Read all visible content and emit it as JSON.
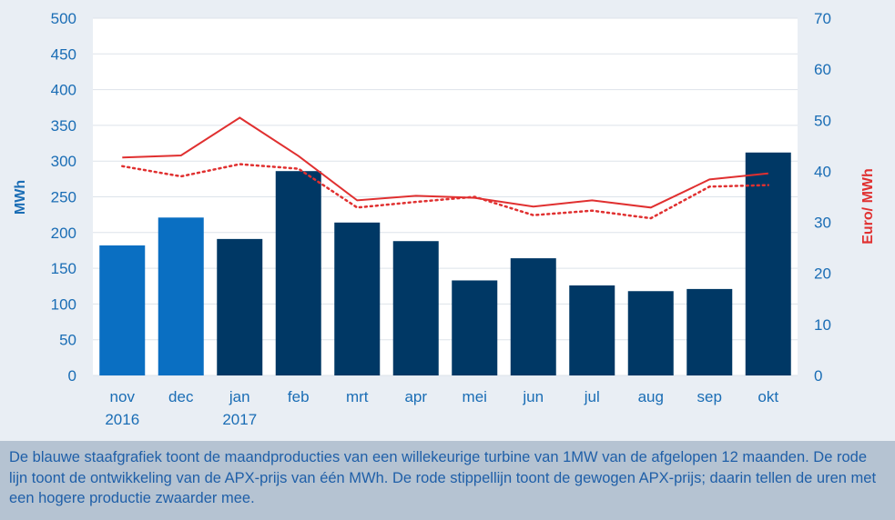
{
  "colors": {
    "bar_highlight": "#0a6fc2",
    "bar_dark": "#003865",
    "price_line": "#e03030",
    "axis_text_left": "#1a6db5",
    "axis_text_right": "#e03030",
    "plot_background": "#ffffff",
    "caption_background": "#b5c3d2"
  },
  "chart_data": {
    "type": "bar",
    "categories": [
      "nov\n2016",
      "dec",
      "jan\n2017",
      "feb",
      "mrt",
      "apr",
      "mei",
      "jun",
      "jul",
      "aug",
      "sep",
      "okt"
    ],
    "ylabel": "MWh",
    "y2label": "Euro/ MWh",
    "ylim": [
      0,
      500
    ],
    "y2lim": [
      0,
      70
    ],
    "yticks": [
      "0",
      "50",
      "100",
      "150",
      "200",
      "250",
      "300",
      "350",
      "400",
      "450",
      "500"
    ],
    "y2ticks": [
      "0",
      "10",
      "20",
      "30",
      "40",
      "50",
      "60",
      "70"
    ],
    "grid": true,
    "bars": {
      "values": [
        182,
        221,
        191,
        286,
        214,
        188,
        133,
        164,
        126,
        118,
        121,
        312
      ],
      "colors": [
        "#0a6fc2",
        "#0a6fc2",
        "#003865",
        "#003865",
        "#003865",
        "#003865",
        "#003865",
        "#003865",
        "#003865",
        "#003865",
        "#003865",
        "#003865"
      ]
    },
    "lines": [
      {
        "axis": "right",
        "style": "solid",
        "values": [
          42.7,
          43.1,
          50.5,
          43.0,
          34.3,
          35.2,
          34.8,
          33.1,
          34.3,
          32.9,
          38.4,
          39.6
        ]
      },
      {
        "axis": "right",
        "style": "dotted",
        "values": [
          41.0,
          39.0,
          41.4,
          40.5,
          32.9,
          34.0,
          35.0,
          31.4,
          32.3,
          30.8,
          37.0,
          37.3
        ]
      }
    ]
  },
  "caption": {
    "text": "De blauwe staafgrafiek toont de maandproducties van een willekeurige turbine van 1MW van de afgelopen 12 maanden. De rode lijn toont de ontwikkeling van de APX-prijs van één MWh. De rode stippellijn toont de gewogen APX-prijs; daarin tellen de uren met een hogere productie zwaarder mee."
  }
}
